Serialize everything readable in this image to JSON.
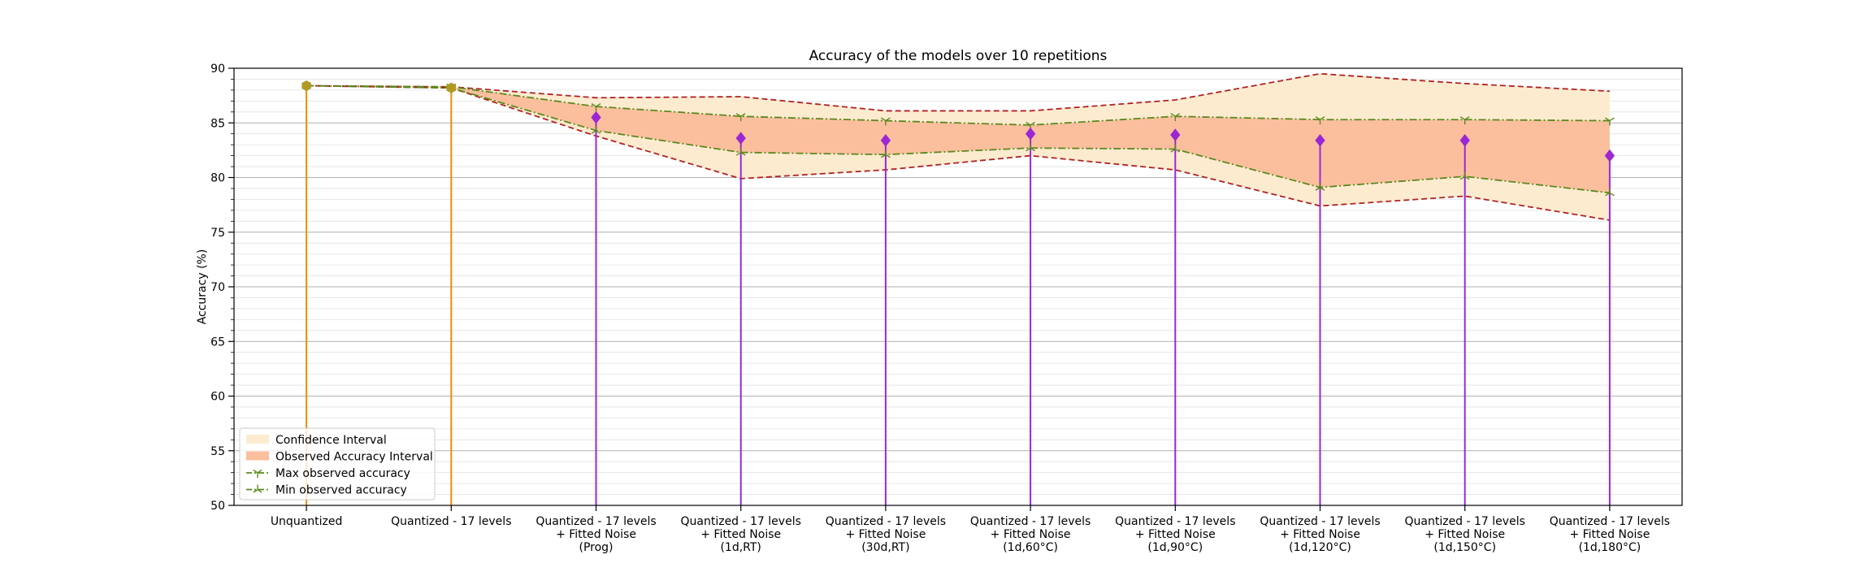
{
  "chart_data": {
    "type": "line",
    "title": "Accuracy of the models over 10 repetitions",
    "xlabel": "",
    "ylabel": "Accuracy (%)",
    "ylim": [
      50,
      90
    ],
    "yticks": [
      50,
      55,
      60,
      65,
      70,
      75,
      80,
      85,
      90
    ],
    "grid": "major and minor horizontal",
    "legend_position": "lower-left",
    "categories": [
      [
        "Unquantized"
      ],
      [
        "Quantized - 17 levels"
      ],
      [
        "Quantized - 17 levels",
        "+ Fitted Noise",
        "(Prog)"
      ],
      [
        "Quantized - 17 levels",
        "+ Fitted Noise",
        "(1d,RT)"
      ],
      [
        "Quantized - 17 levels",
        "+ Fitted Noise",
        "(30d,RT)"
      ],
      [
        "Quantized - 17 levels",
        "+ Fitted Noise",
        "(1d,60°C)"
      ],
      [
        "Quantized - 17 levels",
        "+ Fitted Noise",
        "(1d,90°C)"
      ],
      [
        "Quantized - 17 levels",
        "+ Fitted Noise",
        "(1d,120°C)"
      ],
      [
        "Quantized - 17 levels",
        "+ Fitted Noise",
        "(1d,150°C)"
      ],
      [
        "Quantized - 17 levels",
        "+ Fitted Noise",
        "(1d,180°C)"
      ]
    ],
    "series": [
      {
        "name": "Confidence Interval",
        "kind": "band",
        "color": "#fdebd0",
        "upper": [
          88.4,
          88.3,
          87.3,
          87.4,
          86.1,
          86.1,
          87.1,
          89.5,
          88.6,
          87.9
        ],
        "lower": [
          88.4,
          88.2,
          83.8,
          79.9,
          80.7,
          82.0,
          80.7,
          77.4,
          78.3,
          76.1
        ]
      },
      {
        "name": "Observed Accuracy Interval",
        "kind": "band",
        "color": "#fbbf9e",
        "upper": [
          88.4,
          88.3,
          86.5,
          85.6,
          85.2,
          84.8,
          85.6,
          85.3,
          85.3,
          85.2
        ],
        "lower": [
          88.4,
          88.2,
          84.3,
          82.3,
          82.1,
          82.7,
          82.6,
          79.1,
          80.1,
          78.6
        ]
      },
      {
        "name": "Max observed accuracy",
        "kind": "line",
        "color": "#5a8a1e",
        "values": [
          88.4,
          88.3,
          86.5,
          85.6,
          85.2,
          84.8,
          85.6,
          85.3,
          85.3,
          85.2
        ]
      },
      {
        "name": "Min observed accuracy",
        "kind": "line",
        "color": "#5a8a1e",
        "values": [
          88.4,
          88.2,
          84.3,
          82.3,
          82.1,
          82.7,
          82.6,
          79.1,
          80.1,
          78.6
        ]
      },
      {
        "name": "",
        "kind": "stem",
        "values": [
          88.4,
          88.2,
          85.5,
          83.6,
          83.4,
          84.0,
          83.9,
          83.4,
          83.4,
          82.0
        ],
        "colors": [
          "#f08c00",
          "#f08c00",
          "#9b27d4",
          "#9b27d4",
          "#9b27d4",
          "#9b27d4",
          "#9b27d4",
          "#9b27d4",
          "#9b27d4",
          "#9b27d4"
        ],
        "marker_colors": [
          "#b09a22",
          "#b09a22",
          "#9b27d4",
          "#9b27d4",
          "#9b27d4",
          "#9b27d4",
          "#9b27d4",
          "#9b27d4",
          "#9b27d4",
          "#9b27d4"
        ]
      }
    ],
    "ci_edge_color": "#b22222"
  }
}
